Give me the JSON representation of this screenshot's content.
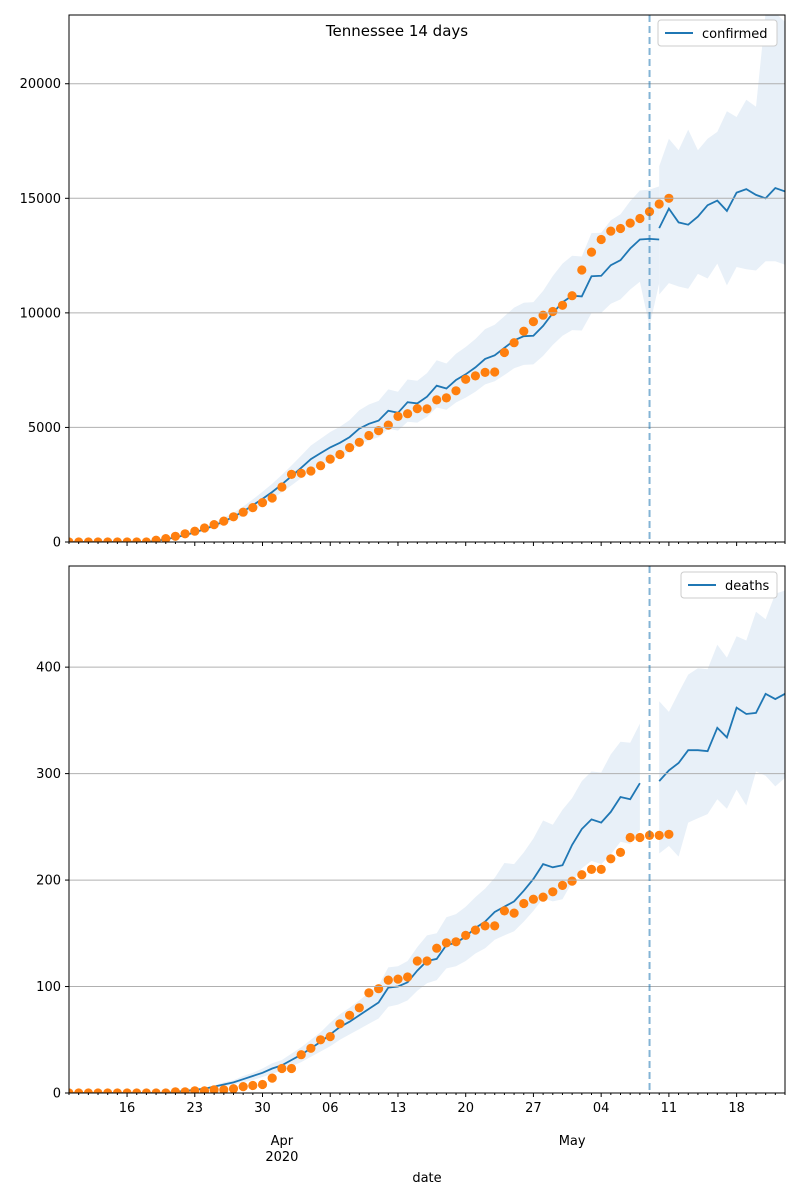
{
  "figure_title": "Tennessee 14 days",
  "colors": {
    "model": "#1f77b4",
    "observed": "#ff7f0e",
    "band": "#e8f0f8",
    "grid": "#b0b0b0",
    "cutoff": "#1f77b4"
  },
  "x_axis": {
    "label": "date",
    "start_day": 10,
    "end_day": 84,
    "cutoff_day": 70,
    "ticks": [
      {
        "day": 16,
        "label": "16"
      },
      {
        "day": 23,
        "label": "23"
      },
      {
        "day": 30,
        "label": "30"
      },
      {
        "day": 37,
        "label": "06"
      },
      {
        "day": 44,
        "label": "13"
      },
      {
        "day": 51,
        "label": "20"
      },
      {
        "day": 58,
        "label": "27"
      },
      {
        "day": 65,
        "label": "04"
      },
      {
        "day": 72,
        "label": "11"
      },
      {
        "day": 79,
        "label": "18"
      }
    ],
    "month_labels": [
      {
        "day": 32,
        "label": "Apr",
        "sub": "2020"
      },
      {
        "day": 62,
        "label": "May",
        "sub": ""
      }
    ]
  },
  "chart_data": [
    {
      "type": "line",
      "title": "Tennessee 14 days",
      "legend": "confirmed",
      "ylim": [
        0,
        23000
      ],
      "yticks": [
        0,
        5000,
        10000,
        15000,
        20000
      ],
      "model_start_day": 10,
      "model_values": [
        0,
        0,
        0,
        0,
        0,
        0,
        0,
        0,
        0,
        50,
        120,
        200,
        300,
        420,
        560,
        720,
        900,
        1100,
        1330,
        1600,
        1880,
        2180,
        2520,
        2870,
        3240,
        3620,
        3880,
        4130,
        4330,
        4580,
        4950,
        5160,
        5300,
        5730,
        5640,
        6100,
        6050,
        6340,
        6820,
        6700,
        7070,
        7320,
        7620,
        7990,
        8150,
        8470,
        8800,
        8980,
        9000,
        9430,
        9990,
        10460,
        10750,
        10720,
        11600,
        11620,
        12080,
        12300,
        12810,
        13200,
        13230,
        13200
      ],
      "forecast_start_day": 71,
      "forecast_values": [
        13700,
        14550,
        13950,
        13850,
        14200,
        14700,
        14900,
        14450,
        15250,
        15400,
        15150,
        15000,
        15450,
        15300
      ],
      "band_lower": [
        0,
        0,
        0,
        0,
        0,
        0,
        0,
        0,
        0,
        40,
        100,
        170,
        255,
        360,
        480,
        620,
        770,
        950,
        1150,
        1380,
        1620,
        1880,
        2170,
        2470,
        2790,
        3120,
        3340,
        3560,
        3730,
        3950,
        4260,
        4440,
        4570,
        4940,
        4860,
        5250,
        5210,
        5460,
        5870,
        5770,
        6090,
        6300,
        6560,
        6880,
        7020,
        7290,
        7580,
        7730,
        7750,
        8120,
        8600,
        9000,
        9250,
        9230,
        9990,
        10000,
        10400,
        10590,
        11020,
        11360,
        9400,
        11300
      ],
      "band_upper": [
        0,
        0,
        0,
        0,
        0,
        0,
        0,
        0,
        0,
        60,
        140,
        235,
        350,
        490,
        650,
        840,
        1050,
        1280,
        1550,
        1860,
        2190,
        2540,
        2930,
        3340,
        3770,
        4210,
        4510,
        4800,
        5030,
        5320,
        5750,
        6000,
        6160,
        6660,
        6560,
        7090,
        7040,
        7370,
        7930,
        7790,
        8220,
        8510,
        8860,
        9290,
        9480,
        9850,
        10230,
        10440,
        10470,
        10960,
        11610,
        12150,
        12490,
        12460,
        13480,
        13500,
        14040,
        14300,
        14880,
        15340,
        15380,
        15520
      ],
      "forecast_band_lower": [
        10800,
        11300,
        11150,
        11050,
        11700,
        11500,
        12150,
        11200,
        12000,
        11900,
        11850,
        12250,
        12250,
        12100
      ],
      "forecast_band_upper": [
        16400,
        17600,
        17100,
        18000,
        17100,
        17600,
        17900,
        18800,
        18550,
        19300,
        19000,
        23100,
        23100,
        22700
      ],
      "observed_start_day": 10,
      "observed_values": [
        0,
        0,
        0,
        0,
        0,
        0,
        0,
        0,
        0,
        80,
        150,
        250,
        360,
        470,
        610,
        760,
        910,
        1100,
        1300,
        1500,
        1720,
        1920,
        2400,
        2950,
        3000,
        3100,
        3330,
        3620,
        3820,
        4120,
        4350,
        4650,
        4860,
        5100,
        5480,
        5600,
        5820,
        5810,
        6200,
        6290,
        6600,
        7100,
        7250,
        7400,
        7420,
        8270,
        8700,
        9200,
        9620,
        9900,
        10060,
        10330,
        10750,
        11870,
        12650,
        13200,
        13570,
        13680,
        13920,
        14120,
        14420,
        14750,
        15000
      ]
    },
    {
      "type": "line",
      "legend": "deaths",
      "ylim": [
        0,
        495
      ],
      "yticks": [
        0,
        100,
        200,
        300,
        400
      ],
      "model_start_day": 10,
      "model_values": [
        0,
        0,
        0,
        0,
        0,
        0,
        0,
        0,
        0,
        0,
        0,
        1,
        2,
        3,
        4,
        6,
        8,
        10,
        13,
        16,
        19,
        23,
        26,
        31,
        36,
        42,
        48,
        55,
        62,
        67,
        73,
        79,
        85,
        99,
        100,
        104,
        115,
        124,
        126,
        139,
        141,
        147,
        155,
        161,
        170,
        175,
        180,
        190,
        201,
        215,
        212,
        214,
        233,
        248,
        257,
        254,
        264,
        278,
        276,
        291
      ],
      "forecast_start_day": 71,
      "forecast_values": [
        293,
        303,
        310,
        322,
        322,
        321,
        343,
        334,
        362,
        356,
        357,
        375,
        370,
        375
      ],
      "band_lower": [
        0,
        0,
        0,
        0,
        0,
        0,
        0,
        0,
        0,
        0,
        0,
        1,
        2,
        2,
        3,
        5,
        6,
        8,
        10,
        12,
        15,
        18,
        21,
        25,
        29,
        34,
        39,
        44,
        50,
        55,
        60,
        65,
        70,
        81,
        83,
        87,
        96,
        103,
        106,
        117,
        119,
        124,
        131,
        136,
        144,
        148,
        152,
        161,
        171,
        183,
        180,
        182,
        198,
        211,
        218,
        215,
        224,
        236,
        234,
        247
      ],
      "band_upper": [
        0,
        0,
        0,
        0,
        0,
        0,
        0,
        0,
        0,
        0,
        0,
        1,
        2,
        4,
        5,
        7,
        10,
        12,
        16,
        19,
        23,
        28,
        31,
        37,
        43,
        50,
        57,
        66,
        74,
        80,
        87,
        94,
        101,
        118,
        119,
        124,
        137,
        148,
        150,
        165,
        168,
        175,
        184,
        192,
        202,
        216,
        215,
        226,
        239,
        256,
        252,
        266,
        277,
        293,
        302,
        301,
        318,
        330,
        329,
        347
      ],
      "forecast_band_lower": [
        225,
        232,
        222,
        254,
        258,
        262,
        276,
        267,
        285,
        270,
        302,
        298,
        288,
        296
      ],
      "forecast_band_upper": [
        368,
        358,
        376,
        393,
        399,
        398,
        421,
        409,
        429,
        425,
        452,
        445,
        469,
        472
      ],
      "observed_start_day": 10,
      "observed_values": [
        0,
        0,
        0,
        0,
        0,
        0,
        0,
        0,
        0,
        0,
        0,
        1,
        1,
        2,
        2,
        3,
        3,
        4,
        6,
        7,
        8,
        14,
        23,
        23,
        36,
        42,
        50,
        53,
        65,
        73,
        80,
        94,
        98,
        106,
        107,
        109,
        124,
        124,
        136,
        141,
        142,
        148,
        153,
        157,
        157,
        171,
        169,
        178,
        182,
        184,
        189,
        195,
        199,
        205,
        210,
        210,
        220,
        226,
        240,
        240,
        242,
        242,
        243
      ]
    }
  ]
}
